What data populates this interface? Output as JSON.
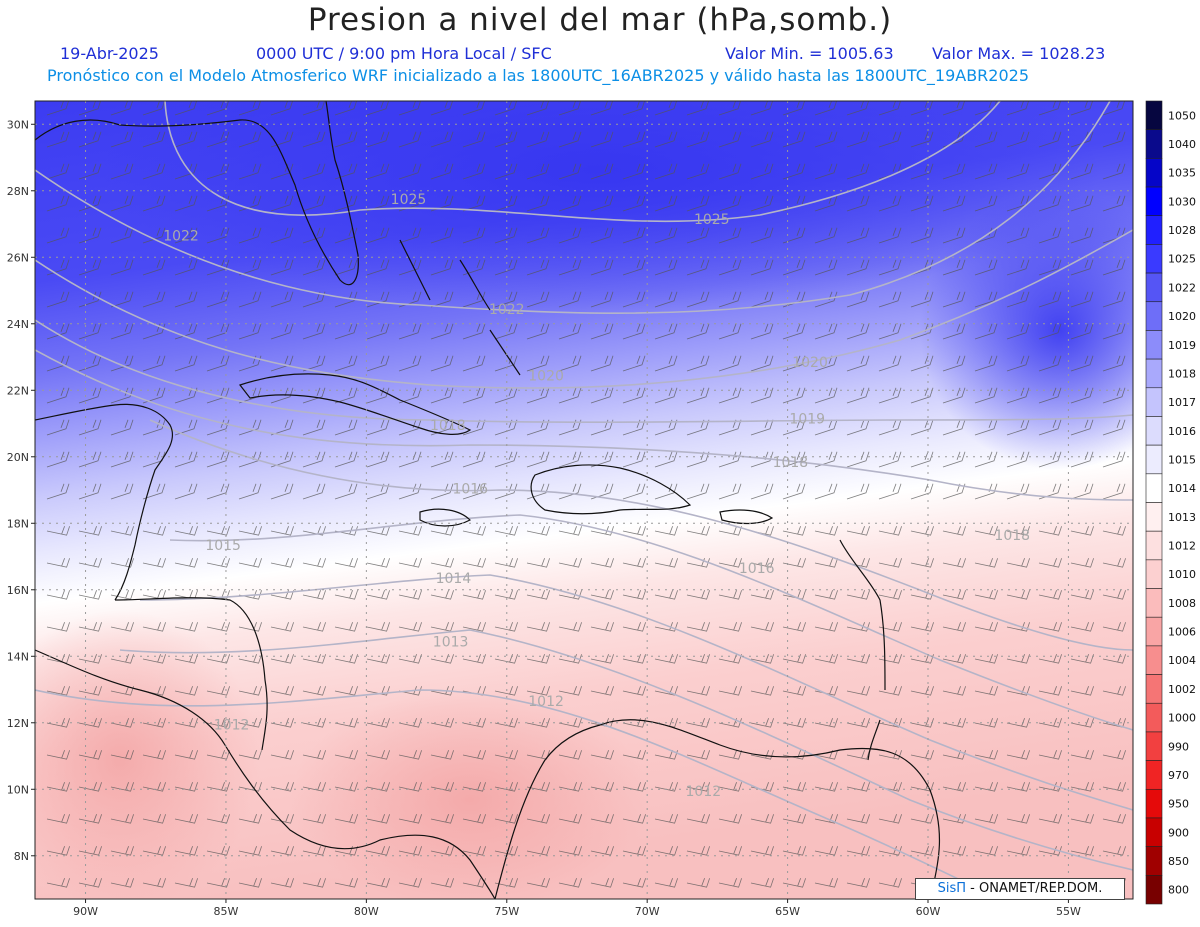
{
  "header": {
    "title": "Presion a nivel del mar (hPa,somb.)",
    "date": "19-Abr-2025",
    "time": "0000 UTC / 9:00 pm Hora Local / SFC",
    "min_label": "Valor Min. = 1005.63",
    "max_label": "Valor Max. = 1028.23",
    "subtitle": "Pronóstico con el Modelo Atmosferico WRF inicializado a las 1800UTC_16ABR2025 y válido hasta las  1800UTC_19ABR2025"
  },
  "axes": {
    "lat_labels": [
      "30N",
      "28N",
      "26N",
      "24N",
      "22N",
      "20N",
      "18N",
      "16N",
      "14N",
      "12N",
      "10N",
      "8N"
    ],
    "lon_labels": [
      "90W",
      "85W",
      "80W",
      "75W",
      "70W",
      "65W",
      "60W",
      "55W"
    ]
  },
  "isobar_labels": [
    {
      "text": "1025",
      "lon": -78.5,
      "lat": 27.6
    },
    {
      "text": "1025",
      "lon": -67.7,
      "lat": 27.0
    },
    {
      "text": "1022",
      "lon": -86.6,
      "lat": 26.5
    },
    {
      "text": "1022",
      "lon": -75.0,
      "lat": 24.3
    },
    {
      "text": "1020",
      "lon": -64.2,
      "lat": 22.7
    },
    {
      "text": "1020",
      "lon": -73.6,
      "lat": 22.3
    },
    {
      "text": "1019",
      "lon": -64.3,
      "lat": 21.0
    },
    {
      "text": "1018",
      "lon": -64.9,
      "lat": 19.7
    },
    {
      "text": "1018",
      "lon": -77.1,
      "lat": 20.8
    },
    {
      "text": "1018",
      "lon": -57.0,
      "lat": 17.5
    },
    {
      "text": "1016",
      "lon": -76.3,
      "lat": 18.9
    },
    {
      "text": "1016",
      "lon": -66.1,
      "lat": 16.5
    },
    {
      "text": "1015",
      "lon": -85.1,
      "lat": 17.2
    },
    {
      "text": "1014",
      "lon": -76.9,
      "lat": 16.2
    },
    {
      "text": "1013",
      "lon": -77.0,
      "lat": 14.3
    },
    {
      "text": "1012",
      "lon": -73.6,
      "lat": 12.5
    },
    {
      "text": "1012",
      "lon": -84.8,
      "lat": 11.8
    },
    {
      "text": "1012",
      "lon": -68.0,
      "lat": 9.8
    }
  ],
  "colorbar": {
    "levels": [
      "1050",
      "1040",
      "1035",
      "1030",
      "1028",
      "1025",
      "1022",
      "1020",
      "1019",
      "1018",
      "1017",
      "1016",
      "1015",
      "1014",
      "1013",
      "1012",
      "1010",
      "1008",
      "1006",
      "1004",
      "1002",
      "1000",
      "990",
      "970",
      "950",
      "900",
      "850",
      "800"
    ],
    "colors": [
      "#060640",
      "#0a0a8c",
      "#0505c8",
      "#0000ff",
      "#2020ff",
      "#3a3aff",
      "#5555f5",
      "#6e6ef8",
      "#8c8cfa",
      "#a9a9fc",
      "#c4c4fd",
      "#dcdcfd",
      "#ececfe",
      "#ffffff",
      "#fff0f0",
      "#fde0e0",
      "#fcd0d0",
      "#fbbcbc",
      "#f9a5a5",
      "#f78e8e",
      "#f57575",
      "#f35b5b",
      "#f24040",
      "#f02424",
      "#e50a0a",
      "#c80000",
      "#a00000",
      "#780000"
    ]
  },
  "credit": {
    "brand": "SisΠ",
    "text": " - ONAMET/REP.DOM."
  }
}
